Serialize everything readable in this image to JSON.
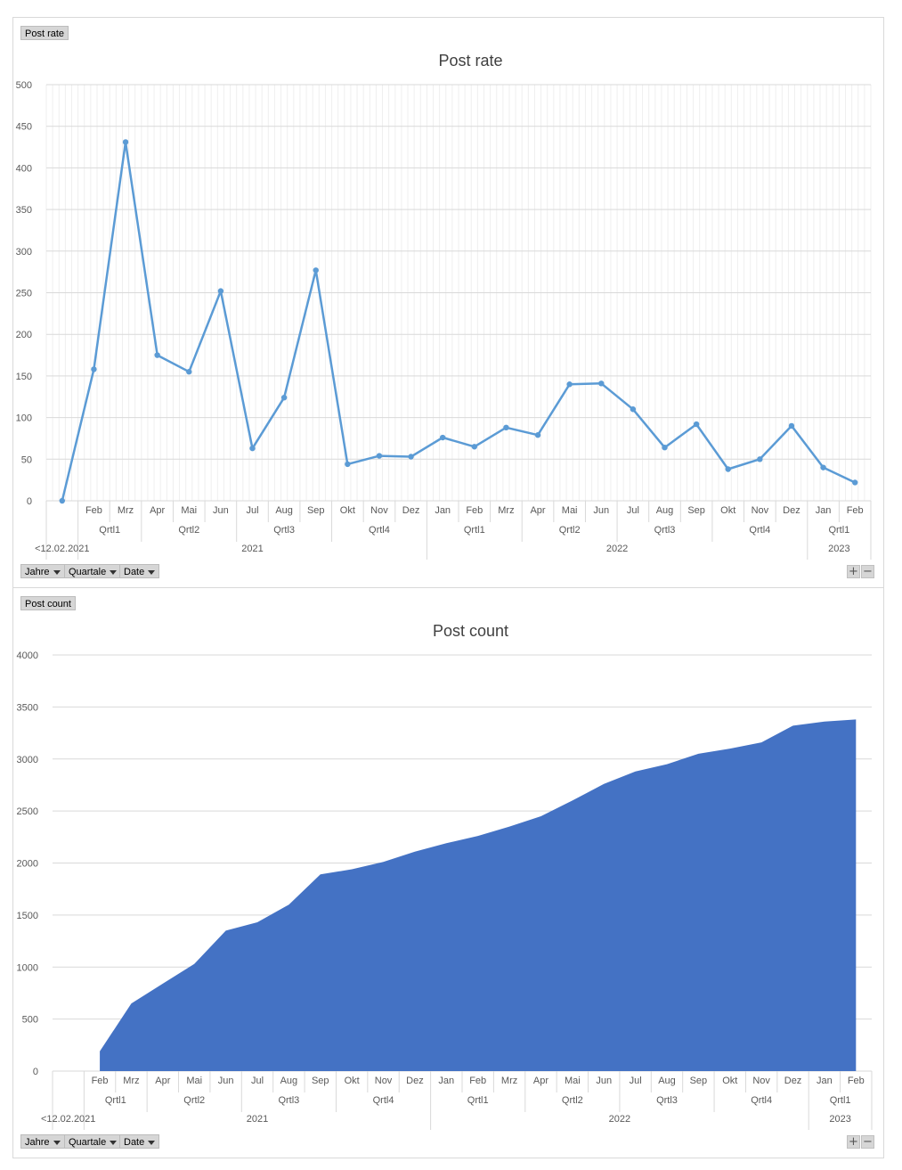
{
  "controls": {
    "year_button": "Jahre",
    "quarter_button": "Quartale",
    "date_button": "Date",
    "plus": "+",
    "minus": "−"
  },
  "axis_labels": {
    "start": "<12.02.2021",
    "months": [
      "",
      "Feb",
      "Mrz",
      "Apr",
      "Mai",
      "Jun",
      "Jul",
      "Aug",
      "Sep",
      "Okt",
      "Nov",
      "Dez",
      "Jan",
      "Feb",
      "Mrz",
      "Apr",
      "Mai",
      "Jun",
      "Jul",
      "Aug",
      "Sep",
      "Okt",
      "Nov",
      "Dez",
      "Jan",
      "Feb"
    ],
    "quarters": [
      {
        "label": "Qrtl1",
        "span": [
          1,
          2
        ]
      },
      {
        "label": "Qrtl2",
        "span": [
          3,
          5
        ]
      },
      {
        "label": "Qrtl3",
        "span": [
          6,
          8
        ]
      },
      {
        "label": "Qrtl4",
        "span": [
          9,
          11
        ]
      },
      {
        "label": "Qrtl1",
        "span": [
          12,
          14
        ]
      },
      {
        "label": "Qrtl2",
        "span": [
          15,
          17
        ]
      },
      {
        "label": "Qrtl3",
        "span": [
          18,
          20
        ]
      },
      {
        "label": "Qrtl4",
        "span": [
          21,
          23
        ]
      },
      {
        "label": "Qrtl1",
        "span": [
          24,
          25
        ]
      }
    ],
    "years": [
      {
        "label": "2021",
        "span": [
          1,
          11
        ]
      },
      {
        "label": "2022",
        "span": [
          12,
          23
        ]
      },
      {
        "label": "2023",
        "span": [
          24,
          25
        ]
      }
    ]
  },
  "chart_data": [
    {
      "type": "line",
      "field_button": "Post rate",
      "title": "Post rate",
      "ylim": [
        0,
        500
      ],
      "yticks": [
        0,
        50,
        100,
        150,
        200,
        250,
        300,
        350,
        400,
        450,
        500
      ],
      "color": "#5b9bd5",
      "grid": true,
      "series": [
        {
          "values": [
            0,
            158,
            431,
            175,
            155,
            252,
            63,
            124,
            277,
            44,
            54,
            53,
            76,
            65,
            88,
            79,
            140,
            141,
            110,
            64,
            92,
            38,
            50,
            90,
            40,
            22
          ]
        }
      ]
    },
    {
      "type": "area",
      "field_button": "Post count",
      "title": "Post count",
      "ylim": [
        0,
        4000
      ],
      "yticks": [
        0,
        500,
        1000,
        1500,
        2000,
        2500,
        3000,
        3500,
        4000
      ],
      "color": "#4472c4",
      "grid": true,
      "series": [
        {
          "values": [
            null,
            190,
            650,
            840,
            1030,
            1350,
            1430,
            1600,
            1890,
            1940,
            2010,
            2110,
            2190,
            2260,
            2350,
            2450,
            2600,
            2760,
            2880,
            2950,
            3050,
            3100,
            3160,
            3320,
            3360,
            3380
          ]
        }
      ]
    }
  ]
}
